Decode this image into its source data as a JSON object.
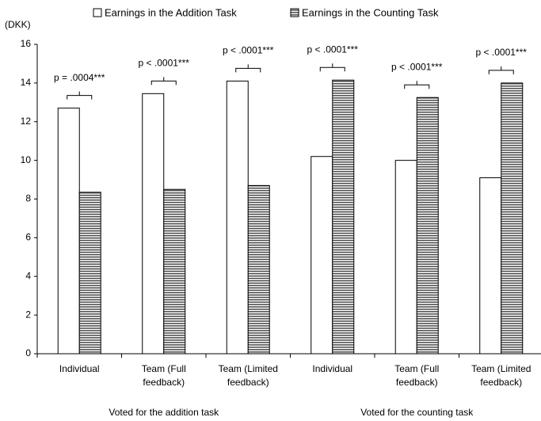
{
  "chart_data": {
    "type": "bar",
    "y_unit": "(DKK)",
    "categories": [
      [
        "Individual"
      ],
      [
        "Team (Full",
        "feedback)"
      ],
      [
        "Team (Limited",
        "feedback)"
      ],
      [
        "Individual"
      ],
      [
        "Team (Full",
        "feedback)"
      ],
      [
        "Team (Limited",
        "feedback)"
      ]
    ],
    "groups": [
      {
        "label": "Voted for the addition task",
        "from": 0,
        "to": 2
      },
      {
        "label": "Voted for the counting task",
        "from": 3,
        "to": 5
      }
    ],
    "series": [
      {
        "name": "Earnings in the Addition Task",
        "color": "#ffffff",
        "values": [
          12.7,
          13.45,
          14.1,
          10.2,
          10.0,
          9.1
        ]
      },
      {
        "name": "Earnings in the Counting Task",
        "color": "#808080",
        "pattern": "horizontal-stripes",
        "values": [
          8.35,
          8.5,
          8.7,
          14.15,
          13.25,
          14.0
        ]
      }
    ],
    "annotations": [
      "p = .0004***",
      "p < .0001***",
      "p < .0001***",
      "p < .0001***",
      "p < .0001***",
      "p < .0001***"
    ],
    "ylim": [
      0,
      16
    ],
    "yticks": [
      0,
      2,
      4,
      6,
      8,
      10,
      12,
      14,
      16
    ],
    "grid": false,
    "legend": "top"
  }
}
